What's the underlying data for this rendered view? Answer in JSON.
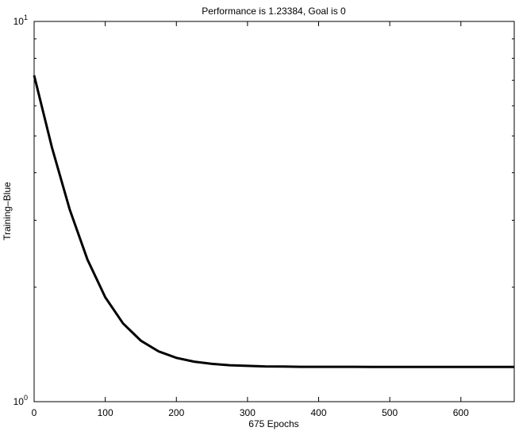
{
  "chart_data": {
    "type": "line",
    "title": "Performance is 1.23384, Goal is 0",
    "x_label": "675 Epochs",
    "y_label": "Training–Blue",
    "x": [
      0,
      25,
      50,
      75,
      100,
      125,
      150,
      175,
      200,
      225,
      250,
      275,
      300,
      325,
      350,
      375,
      400,
      425,
      450,
      475,
      500,
      525,
      550,
      575,
      600,
      625,
      650,
      675
    ],
    "series": [
      {
        "name": "Training",
        "color": "#000000",
        "values": [
          7.214,
          4.665,
          3.203,
          2.364,
          1.882,
          1.606,
          1.447,
          1.356,
          1.304,
          1.274,
          1.257,
          1.247,
          1.242,
          1.238,
          1.237,
          1.235,
          1.2345,
          1.2345,
          1.2345,
          1.234,
          1.234,
          1.234,
          1.234,
          1.234,
          1.234,
          1.234,
          1.234,
          1.23384
        ]
      }
    ],
    "xlim": [
      0,
      675
    ],
    "xticks": [
      0,
      100,
      200,
      300,
      400,
      500,
      600
    ],
    "ylim": [
      1,
      10
    ],
    "log_y": true,
    "yticks": [
      {
        "value": 1,
        "label": "10",
        "exponent": "0"
      },
      {
        "value": 10,
        "label": "10",
        "exponent": "1"
      }
    ],
    "minor_yticks": [
      2,
      3,
      4,
      5,
      6,
      7,
      8,
      9
    ]
  }
}
